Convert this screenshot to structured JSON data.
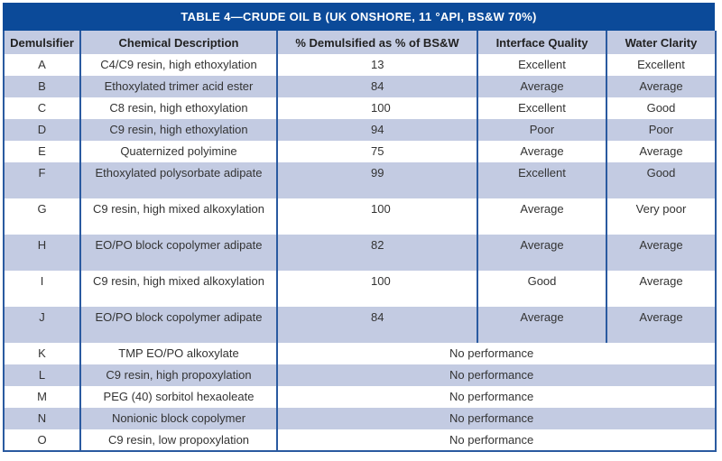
{
  "table": {
    "title": "TABLE 4—CRUDE OIL B (UK ONSHORE, 11 °API, BS&W 70%)",
    "headers": [
      "Demulsifier",
      "Chemical Description",
      "% Demulsified as % of BS&W",
      "Interface Quality",
      "Water Clarity"
    ],
    "rows": [
      {
        "demulsifier": "A",
        "description": "C4/C9 resin, high ethoxylation",
        "pct": "13",
        "interface": "Excellent",
        "clarity": "Excellent"
      },
      {
        "demulsifier": "B",
        "description": "Ethoxylated trimer acid ester",
        "pct": "84",
        "interface": "Average",
        "clarity": "Average"
      },
      {
        "demulsifier": "C",
        "description": "C8 resin, high ethoxylation",
        "pct": "100",
        "interface": "Excellent",
        "clarity": "Good"
      },
      {
        "demulsifier": "D",
        "description": "C9 resin, high ethoxylation",
        "pct": "94",
        "interface": "Poor",
        "clarity": "Poor"
      },
      {
        "demulsifier": "E",
        "description": "Quaternized polyimine",
        "pct": "75",
        "interface": "Average",
        "clarity": "Average"
      },
      {
        "demulsifier": "F",
        "description": "Ethoxylated polysorbate adipate",
        "pct": "99",
        "interface": "Excellent",
        "clarity": "Good"
      },
      {
        "demulsifier": "G",
        "description": "C9 resin, high mixed alkoxylation",
        "pct": "100",
        "interface": "Average",
        "clarity": "Very poor"
      },
      {
        "demulsifier": "H",
        "description": "EO/PO block copolymer adipate",
        "pct": "82",
        "interface": "Average",
        "clarity": "Average"
      },
      {
        "demulsifier": "I",
        "description": "C9 resin, high mixed alkoxylation",
        "pct": "100",
        "interface": "Good",
        "clarity": "Average"
      },
      {
        "demulsifier": "J",
        "description": "EO/PO block copolymer adipate",
        "pct": "84",
        "interface": "Average",
        "clarity": "Average"
      },
      {
        "demulsifier": "K",
        "description": "TMP EO/PO alkoxylate",
        "result": "No performance"
      },
      {
        "demulsifier": "L",
        "description": "C9 resin, high propoxylation",
        "result": "No performance"
      },
      {
        "demulsifier": "M",
        "description": "PEG (40) sorbitol hexaoleate",
        "result": "No performance"
      },
      {
        "demulsifier": "N",
        "description": "Nonionic block copolymer",
        "result": "No performance"
      },
      {
        "demulsifier": "O",
        "description": "C9 resin, low propoxylation",
        "result": "No performance"
      }
    ]
  },
  "colors": {
    "title_bg": "#0b4a99",
    "stripe": "#c3cbe2",
    "border": "#2a5aa0"
  }
}
